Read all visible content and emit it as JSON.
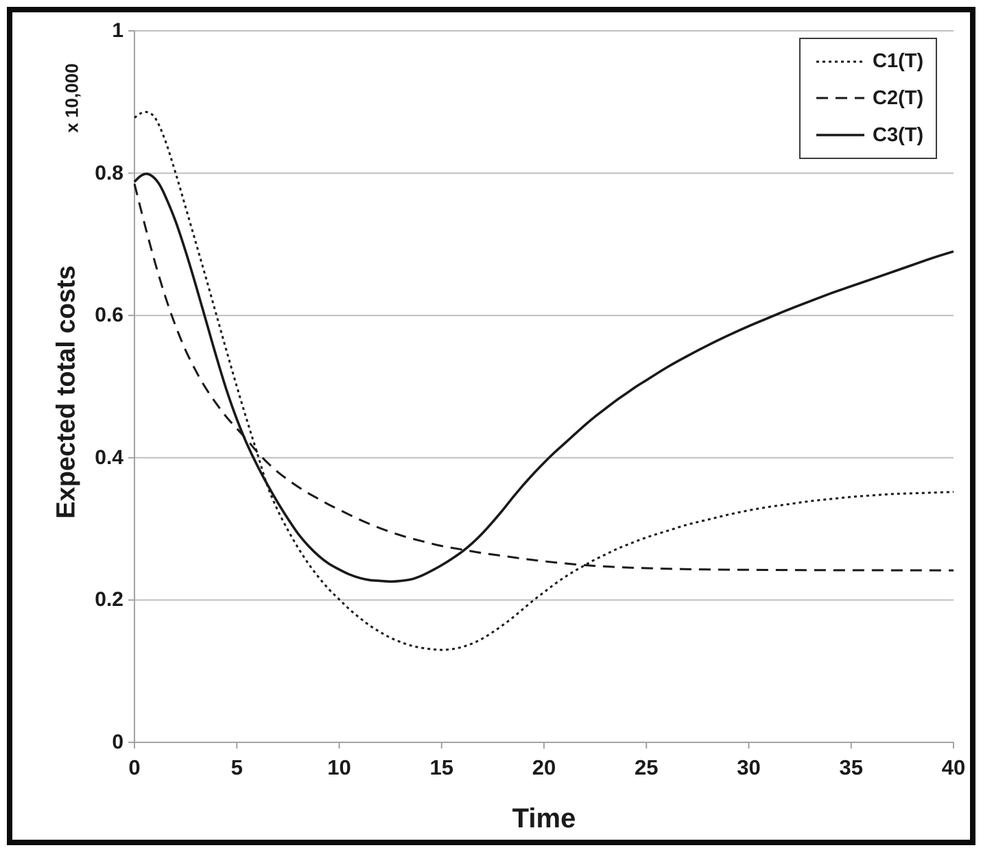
{
  "page": {
    "background": "#ffffff",
    "frame_color": "#0b0b0b",
    "text_color": "#1a1a1a",
    "grid_color": "#bfbfbf",
    "axis_color": "#a3a3a3"
  },
  "chart_data": {
    "type": "line",
    "title": "",
    "xlabel": "Time",
    "ylabel": "Expected total costs",
    "y_multiplier_label": "x 10,000",
    "xlim": [
      0,
      40
    ],
    "ylim": [
      0,
      1
    ],
    "xticks": [
      0,
      5,
      10,
      15,
      20,
      25,
      30,
      35,
      40
    ],
    "yticks": [
      1,
      0.8,
      0.6,
      0.4,
      0.2,
      0
    ],
    "grid": "horizontal",
    "legend_position": "top-right",
    "series": [
      {
        "name": "C1(T)",
        "line_style": "dotted",
        "points": [
          [
            0,
            0.878
          ],
          [
            0.5,
            0.886
          ],
          [
            1,
            0.878
          ],
          [
            1.5,
            0.846
          ],
          [
            2,
            0.801
          ],
          [
            2.5,
            0.752
          ],
          [
            3,
            0.702
          ],
          [
            3.5,
            0.652
          ],
          [
            4,
            0.601
          ],
          [
            4.5,
            0.55
          ],
          [
            5,
            0.5
          ],
          [
            5.5,
            0.452
          ],
          [
            6,
            0.406
          ],
          [
            6.5,
            0.36
          ],
          [
            7,
            0.326
          ],
          [
            7.5,
            0.298
          ],
          [
            8,
            0.273
          ],
          [
            8.5,
            0.251
          ],
          [
            9,
            0.232
          ],
          [
            9.5,
            0.215
          ],
          [
            10,
            0.201
          ],
          [
            10.5,
            0.187
          ],
          [
            11,
            0.175
          ],
          [
            11.5,
            0.164
          ],
          [
            12,
            0.155
          ],
          [
            12.5,
            0.147
          ],
          [
            13,
            0.141
          ],
          [
            13.5,
            0.136
          ],
          [
            14,
            0.133
          ],
          [
            14.5,
            0.131
          ],
          [
            15,
            0.13
          ],
          [
            15.5,
            0.131
          ],
          [
            16,
            0.134
          ],
          [
            16.5,
            0.139
          ],
          [
            17,
            0.146
          ],
          [
            17.5,
            0.155
          ],
          [
            18,
            0.165
          ],
          [
            18.5,
            0.176
          ],
          [
            19,
            0.188
          ],
          [
            19.5,
            0.2
          ],
          [
            20,
            0.211
          ],
          [
            20.5,
            0.222
          ],
          [
            21,
            0.232
          ],
          [
            21.5,
            0.241
          ],
          [
            22,
            0.249
          ],
          [
            22.5,
            0.257
          ],
          [
            23,
            0.264
          ],
          [
            23.5,
            0.271
          ],
          [
            24,
            0.277
          ],
          [
            25,
            0.288
          ],
          [
            26,
            0.297
          ],
          [
            27,
            0.306
          ],
          [
            28,
            0.313
          ],
          [
            29,
            0.32
          ],
          [
            30,
            0.326
          ],
          [
            31,
            0.331
          ],
          [
            32,
            0.335
          ],
          [
            33,
            0.339
          ],
          [
            34,
            0.342
          ],
          [
            35,
            0.345
          ],
          [
            36,
            0.347
          ],
          [
            37,
            0.349
          ],
          [
            38,
            0.35
          ],
          [
            39,
            0.351
          ],
          [
            40,
            0.352
          ]
        ]
      },
      {
        "name": "C2(T)",
        "line_style": "dashed",
        "points": [
          [
            0,
            0.785
          ],
          [
            0.5,
            0.728
          ],
          [
            1,
            0.675
          ],
          [
            1.5,
            0.627
          ],
          [
            2,
            0.586
          ],
          [
            2.5,
            0.551
          ],
          [
            3,
            0.522
          ],
          [
            3.5,
            0.497
          ],
          [
            4,
            0.476
          ],
          [
            4.5,
            0.457
          ],
          [
            5,
            0.441
          ],
          [
            5.5,
            0.425
          ],
          [
            6,
            0.408
          ],
          [
            6.5,
            0.393
          ],
          [
            7,
            0.38
          ],
          [
            7.5,
            0.369
          ],
          [
            8,
            0.359
          ],
          [
            8.5,
            0.35
          ],
          [
            9,
            0.342
          ],
          [
            9.5,
            0.334
          ],
          [
            10,
            0.327
          ],
          [
            11,
            0.313
          ],
          [
            12,
            0.301
          ],
          [
            13,
            0.291
          ],
          [
            14,
            0.283
          ],
          [
            15,
            0.276
          ],
          [
            16,
            0.271
          ],
          [
            17,
            0.266
          ],
          [
            18,
            0.262
          ],
          [
            19,
            0.258
          ],
          [
            20,
            0.2545
          ],
          [
            21,
            0.2515
          ],
          [
            22,
            0.249
          ],
          [
            23,
            0.2472
          ],
          [
            24,
            0.2458
          ],
          [
            25,
            0.2448
          ],
          [
            26,
            0.244
          ],
          [
            27,
            0.2434
          ],
          [
            28,
            0.243
          ],
          [
            29,
            0.2427
          ],
          [
            30,
            0.2425
          ],
          [
            32,
            0.2422
          ],
          [
            34,
            0.242
          ],
          [
            36,
            0.2419
          ],
          [
            38,
            0.2418
          ],
          [
            40,
            0.2417
          ]
        ]
      },
      {
        "name": "C3(T)",
        "line_style": "solid",
        "points": [
          [
            0,
            0.788
          ],
          [
            0.3,
            0.796
          ],
          [
            0.6,
            0.799
          ],
          [
            0.9,
            0.795
          ],
          [
            1.2,
            0.785
          ],
          [
            1.5,
            0.768
          ],
          [
            2,
            0.733
          ],
          [
            2.5,
            0.69
          ],
          [
            3,
            0.642
          ],
          [
            3.5,
            0.592
          ],
          [
            4,
            0.542
          ],
          [
            4.5,
            0.495
          ],
          [
            5,
            0.454
          ],
          [
            5.5,
            0.419
          ],
          [
            6,
            0.389
          ],
          [
            6.5,
            0.362
          ],
          [
            7,
            0.337
          ],
          [
            7.5,
            0.314
          ],
          [
            8,
            0.293
          ],
          [
            8.5,
            0.276
          ],
          [
            9,
            0.262
          ],
          [
            9.5,
            0.251
          ],
          [
            10,
            0.243
          ],
          [
            10.5,
            0.236
          ],
          [
            11,
            0.231
          ],
          [
            11.5,
            0.228
          ],
          [
            12,
            0.227
          ],
          [
            12.5,
            0.226
          ],
          [
            13,
            0.227
          ],
          [
            13.5,
            0.229
          ],
          [
            14,
            0.234
          ],
          [
            14.5,
            0.241
          ],
          [
            15,
            0.249
          ],
          [
            15.5,
            0.258
          ],
          [
            16,
            0.268
          ],
          [
            16.5,
            0.28
          ],
          [
            17,
            0.294
          ],
          [
            17.5,
            0.31
          ],
          [
            18,
            0.327
          ],
          [
            18.5,
            0.345
          ],
          [
            19,
            0.362
          ],
          [
            19.5,
            0.378
          ],
          [
            20,
            0.393
          ],
          [
            20.5,
            0.407
          ],
          [
            21,
            0.42
          ],
          [
            21.5,
            0.433
          ],
          [
            22,
            0.446
          ],
          [
            22.5,
            0.458
          ],
          [
            23,
            0.469
          ],
          [
            23.5,
            0.48
          ],
          [
            24,
            0.49
          ],
          [
            24.5,
            0.5
          ],
          [
            25,
            0.509
          ],
          [
            26,
            0.527
          ],
          [
            27,
            0.543
          ],
          [
            28,
            0.558
          ],
          [
            29,
            0.572
          ],
          [
            30,
            0.585
          ],
          [
            31,
            0.597
          ],
          [
            32,
            0.609
          ],
          [
            33,
            0.62
          ],
          [
            34,
            0.631
          ],
          [
            35,
            0.641
          ],
          [
            36,
            0.651
          ],
          [
            37,
            0.661
          ],
          [
            38,
            0.671
          ],
          [
            39,
            0.681
          ],
          [
            40,
            0.69
          ]
        ]
      }
    ]
  }
}
